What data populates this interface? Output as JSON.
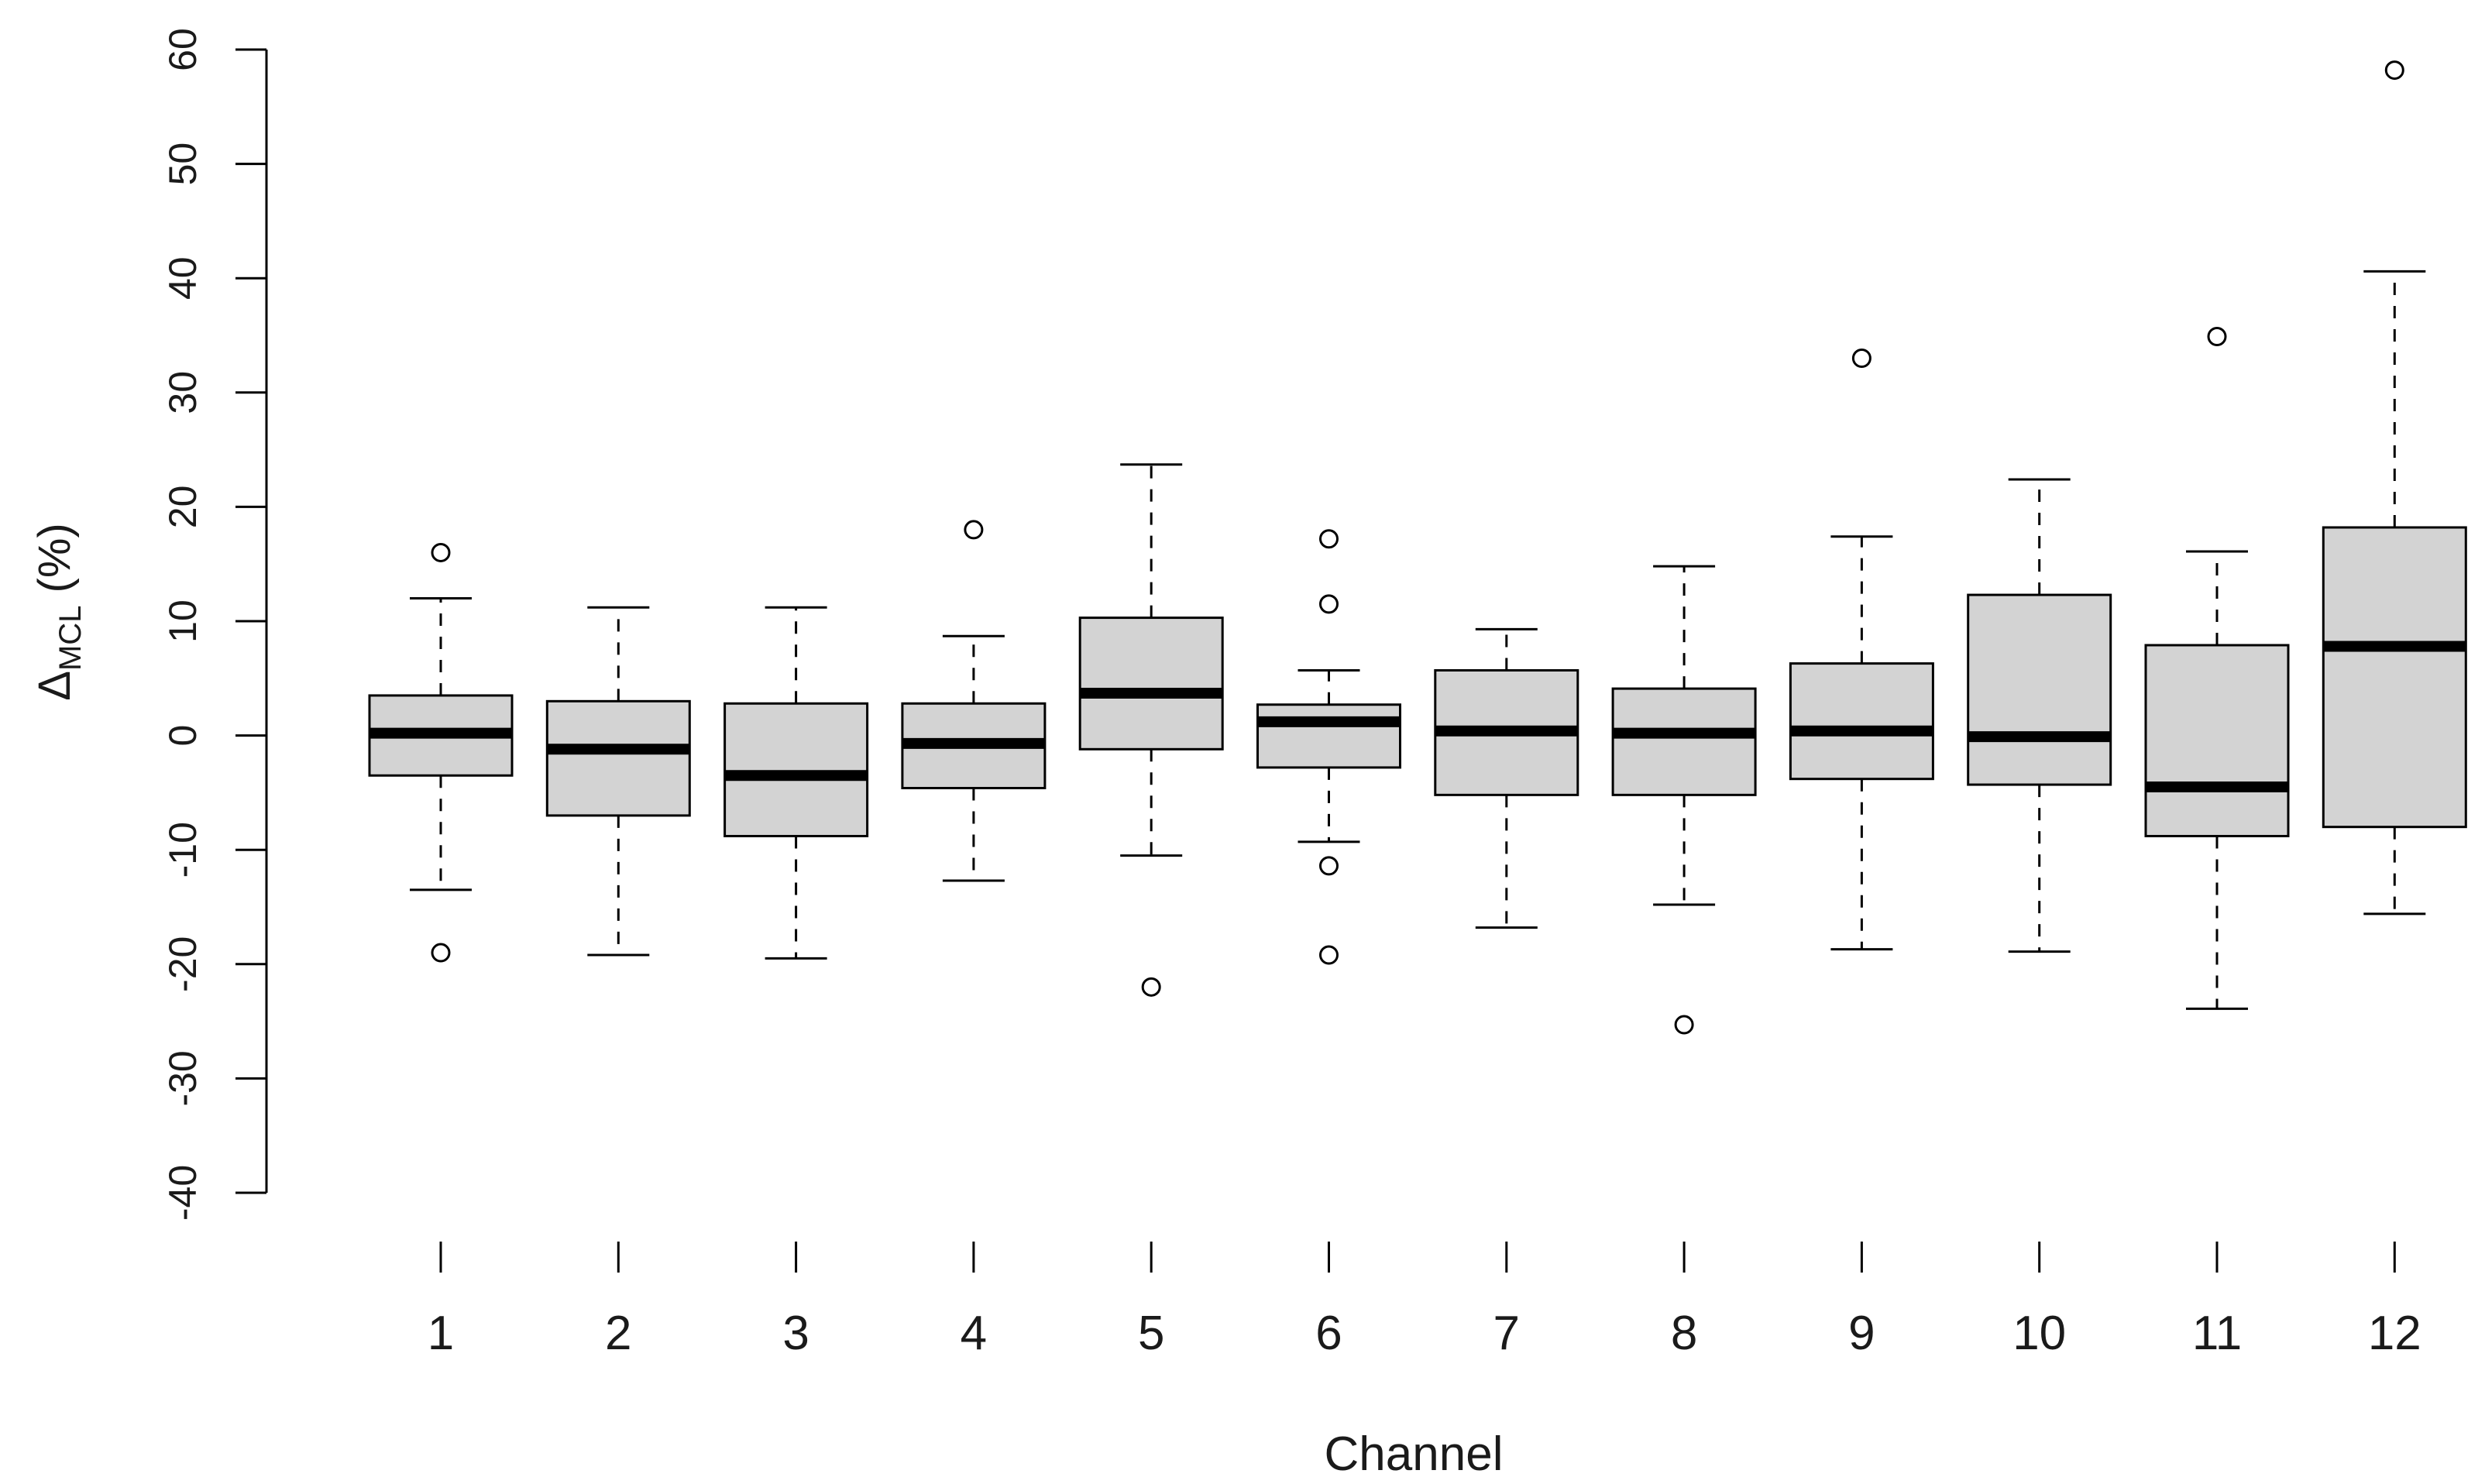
{
  "chart_data": {
    "type": "boxplot",
    "xlabel": "Channel",
    "ylabel": {
      "symbol": "Δ",
      "subscript": "MCL",
      "suffix": " (%)"
    },
    "ylim": [
      -40,
      60
    ],
    "yticks": [
      -40,
      -30,
      -20,
      -10,
      0,
      10,
      20,
      30,
      40,
      50,
      60
    ],
    "ytick_labels": [
      "-40",
      "-30",
      "-20",
      "-10",
      "0",
      "10",
      "20",
      "30",
      "40",
      "50",
      "60"
    ],
    "categories": [
      "1",
      "2",
      "3",
      "4",
      "5",
      "6",
      "7",
      "8",
      "9",
      "10",
      "11",
      "12"
    ],
    "grid": false,
    "box_fill": "#d3d3d3",
    "line_color": "#000000",
    "boxes": [
      {
        "category": "1",
        "whisker_low": -13.5,
        "q1": -3.5,
        "median": 0.2,
        "q3": 3.5,
        "whisker_high": 12,
        "outliers": [
          16,
          -19
        ]
      },
      {
        "category": "2",
        "whisker_low": -19.2,
        "q1": -7,
        "median": -1.2,
        "q3": 3,
        "whisker_high": 11.2,
        "outliers": []
      },
      {
        "category": "3",
        "whisker_low": -19.5,
        "q1": -8.8,
        "median": -3.5,
        "q3": 2.8,
        "whisker_high": 11.2,
        "outliers": []
      },
      {
        "category": "4",
        "whisker_low": -12.7,
        "q1": -4.6,
        "median": -0.7,
        "q3": 2.8,
        "whisker_high": 8.7,
        "outliers": [
          18
        ]
      },
      {
        "category": "5",
        "whisker_low": -10.5,
        "q1": -1.2,
        "median": 3.7,
        "q3": 10.3,
        "whisker_high": 23.7,
        "outliers": [
          -22
        ]
      },
      {
        "category": "6",
        "whisker_low": -9.3,
        "q1": -2.8,
        "median": 1.2,
        "q3": 2.7,
        "whisker_high": 5.7,
        "outliers": [
          17.2,
          11.5,
          -11.4,
          -19.2
        ]
      },
      {
        "category": "7",
        "whisker_low": -16.8,
        "q1": -5.2,
        "median": 0.4,
        "q3": 5.7,
        "whisker_high": 9.3,
        "outliers": []
      },
      {
        "category": "8",
        "whisker_low": -14.8,
        "q1": -5.2,
        "median": 0.2,
        "q3": 4.1,
        "whisker_high": 14.8,
        "outliers": [
          -25.3
        ]
      },
      {
        "category": "9",
        "whisker_low": -18.7,
        "q1": -3.8,
        "median": 0.4,
        "q3": 6.3,
        "whisker_high": 17.4,
        "outliers": [
          33
        ]
      },
      {
        "category": "10",
        "whisker_low": -18.9,
        "q1": -4.3,
        "median": -0.1,
        "q3": 12.3,
        "whisker_high": 22.4,
        "outliers": []
      },
      {
        "category": "11",
        "whisker_low": -23.9,
        "q1": -8.8,
        "median": -4.5,
        "q3": 7.9,
        "whisker_high": 16.1,
        "outliers": [
          34.9
        ]
      },
      {
        "category": "12",
        "whisker_low": -15.6,
        "q1": -8,
        "median": 7.8,
        "q3": 18.2,
        "whisker_high": 40.6,
        "outliers": [
          58.2
        ]
      }
    ]
  }
}
